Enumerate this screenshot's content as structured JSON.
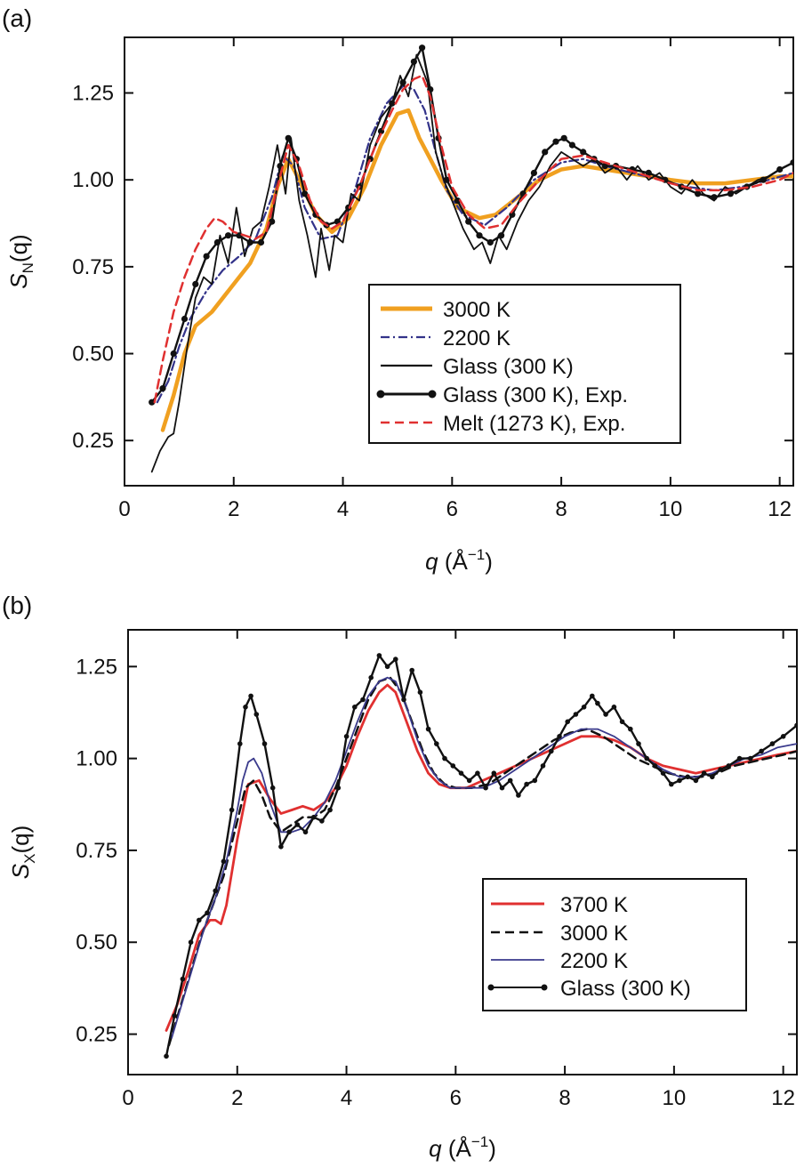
{
  "chart_data": [
    {
      "panel": "(a)",
      "type": "line",
      "xlabel": {
        "var": "q",
        "unit": "(Å",
        "exp": "−1",
        "close": ")"
      },
      "ylabel": {
        "var": "S",
        "sub": "N",
        "arg": "(q)"
      },
      "xlim": [
        0,
        12.25
      ],
      "ylim": [
        0.12,
        1.41
      ],
      "xticks": [
        0,
        2,
        4,
        6,
        8,
        10,
        12
      ],
      "yticks": [
        0.25,
        0.5,
        0.75,
        1.0,
        1.25
      ],
      "ytick_labels": [
        "0.25",
        "0.50",
        "0.75",
        "1.00",
        "1.25"
      ],
      "legend_position": "lower-right",
      "series": [
        {
          "name": "3000 K",
          "color": "#f0a020",
          "style": "thick",
          "x": [
            0.7,
            0.9,
            1.1,
            1.3,
            1.6,
            2.0,
            2.3,
            2.6,
            2.8,
            3.0,
            3.2,
            3.5,
            3.8,
            4.1,
            4.4,
            4.7,
            5.0,
            5.2,
            5.4,
            5.6,
            5.8,
            6.1,
            6.5,
            6.8,
            7.2,
            7.6,
            8.0,
            8.4,
            8.8,
            9.2,
            9.6,
            10.0,
            10.5,
            11.0,
            11.5,
            12.0,
            12.25
          ],
          "y": [
            0.28,
            0.38,
            0.5,
            0.58,
            0.62,
            0.7,
            0.76,
            0.86,
            0.98,
            1.06,
            1.0,
            0.9,
            0.85,
            0.89,
            0.98,
            1.1,
            1.19,
            1.2,
            1.12,
            1.06,
            1.0,
            0.92,
            0.89,
            0.9,
            0.95,
            1.0,
            1.03,
            1.04,
            1.03,
            1.02,
            1.01,
            1.0,
            0.99,
            0.99,
            1.0,
            1.01,
            1.01
          ]
        },
        {
          "name": "2200 K",
          "color": "#33338a",
          "style": "dashdot",
          "x": [
            0.6,
            0.8,
            1.0,
            1.2,
            1.5,
            1.8,
            2.1,
            2.4,
            2.7,
            2.9,
            3.1,
            3.3,
            3.6,
            3.9,
            4.2,
            4.5,
            4.8,
            5.1,
            5.3,
            5.5,
            5.7,
            5.9,
            6.2,
            6.6,
            7.0,
            7.5,
            8.0,
            8.4,
            8.8,
            9.3,
            9.8,
            10.3,
            10.8,
            11.3,
            11.8,
            12.25
          ],
          "y": [
            0.36,
            0.42,
            0.52,
            0.6,
            0.68,
            0.74,
            0.78,
            0.83,
            0.95,
            1.07,
            1.04,
            0.92,
            0.83,
            0.84,
            0.96,
            1.12,
            1.22,
            1.27,
            1.26,
            1.2,
            1.08,
            0.97,
            0.9,
            0.87,
            0.92,
            1.0,
            1.05,
            1.06,
            1.04,
            1.02,
            1.0,
            0.98,
            0.97,
            0.98,
            1.0,
            1.02
          ]
        },
        {
          "name": "Glass (300 K)",
          "color": "#111111",
          "style": "thin",
          "x": [
            0.5,
            0.65,
            0.8,
            0.9,
            1.0,
            1.15,
            1.3,
            1.45,
            1.6,
            1.75,
            1.9,
            2.05,
            2.2,
            2.35,
            2.5,
            2.65,
            2.8,
            2.95,
            3.05,
            3.2,
            3.35,
            3.5,
            3.6,
            3.75,
            3.85,
            4.0,
            4.15,
            4.3,
            4.5,
            4.7,
            4.9,
            5.05,
            5.2,
            5.35,
            5.45,
            5.55,
            5.7,
            5.85,
            6.0,
            6.2,
            6.4,
            6.55,
            6.7,
            6.85,
            7.0,
            7.2,
            7.4,
            7.6,
            7.8,
            8.0,
            8.2,
            8.4,
            8.6,
            8.8,
            9.0,
            9.2,
            9.4,
            9.6,
            9.8,
            10.0,
            10.2,
            10.4,
            10.6,
            10.8,
            11.0,
            11.2,
            11.4,
            11.6,
            11.8,
            12.0,
            12.25
          ],
          "y": [
            0.16,
            0.22,
            0.26,
            0.27,
            0.36,
            0.52,
            0.66,
            0.72,
            0.7,
            0.84,
            0.76,
            0.92,
            0.78,
            0.86,
            0.88,
            0.98,
            1.1,
            0.96,
            1.12,
            0.94,
            0.84,
            0.72,
            0.86,
            0.74,
            0.84,
            0.82,
            0.96,
            0.94,
            1.1,
            1.18,
            1.22,
            1.3,
            1.24,
            1.36,
            1.32,
            1.28,
            1.08,
            1.0,
            0.94,
            0.86,
            0.8,
            0.82,
            0.76,
            0.84,
            0.8,
            0.88,
            0.94,
            0.98,
            1.04,
            1.08,
            1.06,
            1.04,
            1.06,
            1.02,
            1.04,
            1.0,
            1.04,
            1.0,
            1.02,
            0.98,
            0.96,
            1.0,
            0.96,
            0.94,
            0.98,
            0.96,
            0.98,
            1.0,
            1.01,
            1.03,
            1.05
          ]
        },
        {
          "name": "Glass (300 K), Exp.",
          "color": "#111111",
          "style": "dots",
          "x": [
            0.5,
            0.7,
            0.9,
            1.1,
            1.3,
            1.5,
            1.7,
            1.9,
            2.1,
            2.3,
            2.5,
            2.7,
            2.85,
            3.0,
            3.15,
            3.3,
            3.5,
            3.7,
            3.9,
            4.1,
            4.3,
            4.5,
            4.7,
            4.9,
            5.1,
            5.3,
            5.45,
            5.6,
            5.75,
            5.9,
            6.1,
            6.3,
            6.5,
            6.7,
            6.9,
            7.1,
            7.3,
            7.5,
            7.7,
            7.9,
            8.05,
            8.2,
            8.4,
            8.6,
            8.8,
            9.0,
            9.3,
            9.6,
            9.9,
            10.2,
            10.5,
            10.8,
            11.1,
            11.4,
            11.7,
            12.0,
            12.25
          ],
          "y": [
            0.36,
            0.4,
            0.5,
            0.6,
            0.7,
            0.78,
            0.82,
            0.84,
            0.84,
            0.82,
            0.82,
            0.88,
            1.04,
            1.12,
            1.06,
            0.96,
            0.9,
            0.87,
            0.88,
            0.92,
            0.98,
            1.06,
            1.14,
            1.22,
            1.28,
            1.34,
            1.38,
            1.26,
            1.12,
            1.0,
            0.94,
            0.88,
            0.84,
            0.82,
            0.84,
            0.9,
            0.96,
            1.02,
            1.08,
            1.11,
            1.12,
            1.1,
            1.08,
            1.06,
            1.04,
            1.04,
            1.03,
            1.02,
            1.0,
            0.98,
            0.96,
            0.95,
            0.96,
            0.98,
            1.0,
            1.03,
            1.05
          ]
        },
        {
          "name": "Melt (1273 K), Exp.",
          "color": "#e03030",
          "style": "dashed",
          "x": [
            0.55,
            0.7,
            0.9,
            1.1,
            1.3,
            1.5,
            1.65,
            1.8,
            2.0,
            2.2,
            2.4,
            2.6,
            2.8,
            3.0,
            3.2,
            3.4,
            3.6,
            3.8,
            4.0,
            4.3,
            4.6,
            4.9,
            5.1,
            5.3,
            5.45,
            5.6,
            5.8,
            6.0,
            6.3,
            6.6,
            6.9,
            7.2,
            7.6,
            8.0,
            8.4,
            8.8,
            9.2,
            9.6,
            10.0,
            10.5,
            11.0,
            11.5,
            12.0,
            12.25
          ],
          "y": [
            0.36,
            0.48,
            0.62,
            0.72,
            0.8,
            0.86,
            0.89,
            0.88,
            0.85,
            0.84,
            0.83,
            0.85,
            0.98,
            1.1,
            1.04,
            0.94,
            0.88,
            0.86,
            0.88,
            0.98,
            1.1,
            1.2,
            1.26,
            1.29,
            1.3,
            1.24,
            1.1,
            0.98,
            0.9,
            0.86,
            0.87,
            0.93,
            1.0,
            1.06,
            1.07,
            1.05,
            1.03,
            1.01,
            0.99,
            0.97,
            0.97,
            0.98,
            1.0,
            1.02
          ]
        }
      ]
    },
    {
      "panel": "(b)",
      "type": "line",
      "xlabel": {
        "var": "q",
        "unit": "(Å",
        "exp": "−1",
        "close": ")"
      },
      "ylabel": {
        "var": "S",
        "sub": "X",
        "arg": "(q)"
      },
      "xlim": [
        0,
        12.25
      ],
      "ylim": [
        0.14,
        1.35
      ],
      "xticks": [
        0,
        2,
        4,
        6,
        8,
        10,
        12
      ],
      "yticks": [
        0.25,
        0.5,
        0.75,
        1.0,
        1.25
      ],
      "ytick_labels": [
        "0.25",
        "0.50",
        "0.75",
        "1.00",
        "1.25"
      ],
      "legend_position": "lower-right",
      "series": [
        {
          "name": "3700 K",
          "color": "#e03030",
          "style": "medium",
          "x": [
            0.7,
            0.9,
            1.1,
            1.3,
            1.5,
            1.6,
            1.7,
            1.8,
            2.0,
            2.2,
            2.4,
            2.6,
            2.8,
            3.0,
            3.2,
            3.4,
            3.6,
            3.8,
            4.0,
            4.2,
            4.4,
            4.6,
            4.75,
            4.9,
            5.1,
            5.3,
            5.5,
            5.7,
            5.9,
            6.2,
            6.5,
            6.8,
            7.1,
            7.4,
            7.7,
            8.0,
            8.3,
            8.6,
            8.9,
            9.2,
            9.5,
            9.8,
            10.1,
            10.4,
            10.7,
            11.0,
            11.3,
            11.6,
            11.9,
            12.25
          ],
          "y": [
            0.26,
            0.33,
            0.42,
            0.52,
            0.56,
            0.56,
            0.55,
            0.6,
            0.78,
            0.93,
            0.94,
            0.89,
            0.85,
            0.86,
            0.87,
            0.86,
            0.88,
            0.92,
            0.98,
            1.06,
            1.13,
            1.18,
            1.2,
            1.18,
            1.1,
            1.02,
            0.96,
            0.93,
            0.92,
            0.92,
            0.94,
            0.96,
            0.98,
            1.0,
            1.02,
            1.04,
            1.06,
            1.06,
            1.05,
            1.03,
            1.0,
            0.98,
            0.97,
            0.96,
            0.97,
            0.98,
            0.99,
            1.0,
            1.01,
            1.02
          ]
        },
        {
          "name": "3000 K",
          "color": "#111111",
          "style": "dashed",
          "x": [
            0.75,
            0.95,
            1.15,
            1.35,
            1.55,
            1.75,
            1.95,
            2.15,
            2.3,
            2.45,
            2.6,
            2.8,
            3.0,
            3.2,
            3.4,
            3.6,
            3.8,
            4.0,
            4.2,
            4.4,
            4.6,
            4.8,
            5.0,
            5.2,
            5.4,
            5.6,
            5.8,
            6.0,
            6.3,
            6.6,
            6.9,
            7.2,
            7.5,
            7.8,
            8.1,
            8.4,
            8.7,
            9.0,
            9.3,
            9.6,
            9.9,
            10.2,
            10.5,
            10.8,
            11.1,
            11.4,
            11.7,
            12.0,
            12.25
          ],
          "y": [
            0.22,
            0.32,
            0.42,
            0.52,
            0.6,
            0.68,
            0.8,
            0.92,
            0.94,
            0.9,
            0.84,
            0.8,
            0.82,
            0.84,
            0.84,
            0.86,
            0.92,
            1.0,
            1.08,
            1.16,
            1.21,
            1.22,
            1.18,
            1.1,
            1.02,
            0.96,
            0.93,
            0.92,
            0.92,
            0.93,
            0.96,
            0.99,
            1.02,
            1.05,
            1.07,
            1.08,
            1.06,
            1.03,
            1.0,
            0.98,
            0.96,
            0.95,
            0.95,
            0.96,
            0.98,
            0.99,
            1.0,
            1.01,
            1.02
          ]
        },
        {
          "name": "2200 K",
          "color": "#3a3a8c",
          "style": "thin",
          "x": [
            0.8,
            1.0,
            1.2,
            1.4,
            1.6,
            1.8,
            2.0,
            2.1,
            2.2,
            2.3,
            2.45,
            2.6,
            2.8,
            3.0,
            3.2,
            3.4,
            3.6,
            3.8,
            4.0,
            4.2,
            4.4,
            4.6,
            4.75,
            4.9,
            5.1,
            5.3,
            5.5,
            5.7,
            5.9,
            6.2,
            6.5,
            6.8,
            7.1,
            7.4,
            7.7,
            8.0,
            8.3,
            8.6,
            8.9,
            9.2,
            9.5,
            9.8,
            10.1,
            10.4,
            10.7,
            11.0,
            11.3,
            11.6,
            11.9,
            12.25
          ],
          "y": [
            0.24,
            0.34,
            0.44,
            0.54,
            0.62,
            0.72,
            0.86,
            0.94,
            0.99,
            1.0,
            0.96,
            0.88,
            0.8,
            0.8,
            0.81,
            0.84,
            0.88,
            0.94,
            1.02,
            1.1,
            1.17,
            1.21,
            1.22,
            1.21,
            1.14,
            1.05,
            0.98,
            0.94,
            0.92,
            0.92,
            0.92,
            0.94,
            0.97,
            1.0,
            1.03,
            1.06,
            1.08,
            1.08,
            1.06,
            1.03,
            1.0,
            0.97,
            0.95,
            0.95,
            0.96,
            0.98,
            1.0,
            1.01,
            1.03,
            1.04
          ]
        },
        {
          "name": "Glass (300 K)",
          "color": "#111111",
          "style": "dots",
          "x": [
            0.7,
            0.85,
            1.0,
            1.15,
            1.3,
            1.45,
            1.6,
            1.75,
            1.9,
            2.05,
            2.15,
            2.25,
            2.35,
            2.5,
            2.65,
            2.8,
            2.95,
            3.1,
            3.25,
            3.4,
            3.55,
            3.7,
            3.85,
            4.0,
            4.15,
            4.3,
            4.45,
            4.6,
            4.75,
            4.9,
            5.05,
            5.2,
            5.35,
            5.5,
            5.65,
            5.8,
            5.95,
            6.1,
            6.25,
            6.4,
            6.55,
            6.7,
            6.85,
            7.0,
            7.15,
            7.3,
            7.45,
            7.6,
            7.75,
            7.9,
            8.05,
            8.2,
            8.35,
            8.5,
            8.6,
            8.75,
            8.9,
            9.05,
            9.2,
            9.35,
            9.5,
            9.65,
            9.8,
            9.95,
            10.1,
            10.25,
            10.4,
            10.55,
            10.7,
            10.85,
            11.0,
            11.2,
            11.4,
            11.6,
            11.8,
            12.0,
            12.25
          ],
          "y": [
            0.19,
            0.3,
            0.4,
            0.5,
            0.56,
            0.58,
            0.64,
            0.72,
            0.86,
            1.04,
            1.14,
            1.17,
            1.12,
            1.04,
            0.92,
            0.76,
            0.8,
            0.82,
            0.8,
            0.84,
            0.83,
            0.86,
            0.92,
            1.06,
            1.14,
            1.16,
            1.22,
            1.28,
            1.25,
            1.27,
            1.16,
            1.24,
            1.18,
            1.08,
            1.04,
            1.0,
            0.98,
            0.96,
            0.94,
            0.96,
            0.92,
            0.96,
            0.92,
            0.94,
            0.9,
            0.93,
            0.94,
            0.98,
            1.02,
            1.06,
            1.1,
            1.12,
            1.14,
            1.17,
            1.15,
            1.12,
            1.14,
            1.1,
            1.08,
            1.04,
            1.0,
            0.98,
            0.96,
            0.93,
            0.94,
            0.95,
            0.94,
            0.96,
            0.95,
            0.97,
            0.98,
            1.0,
            1.0,
            1.02,
            1.04,
            1.06,
            1.09
          ]
        }
      ]
    }
  ]
}
